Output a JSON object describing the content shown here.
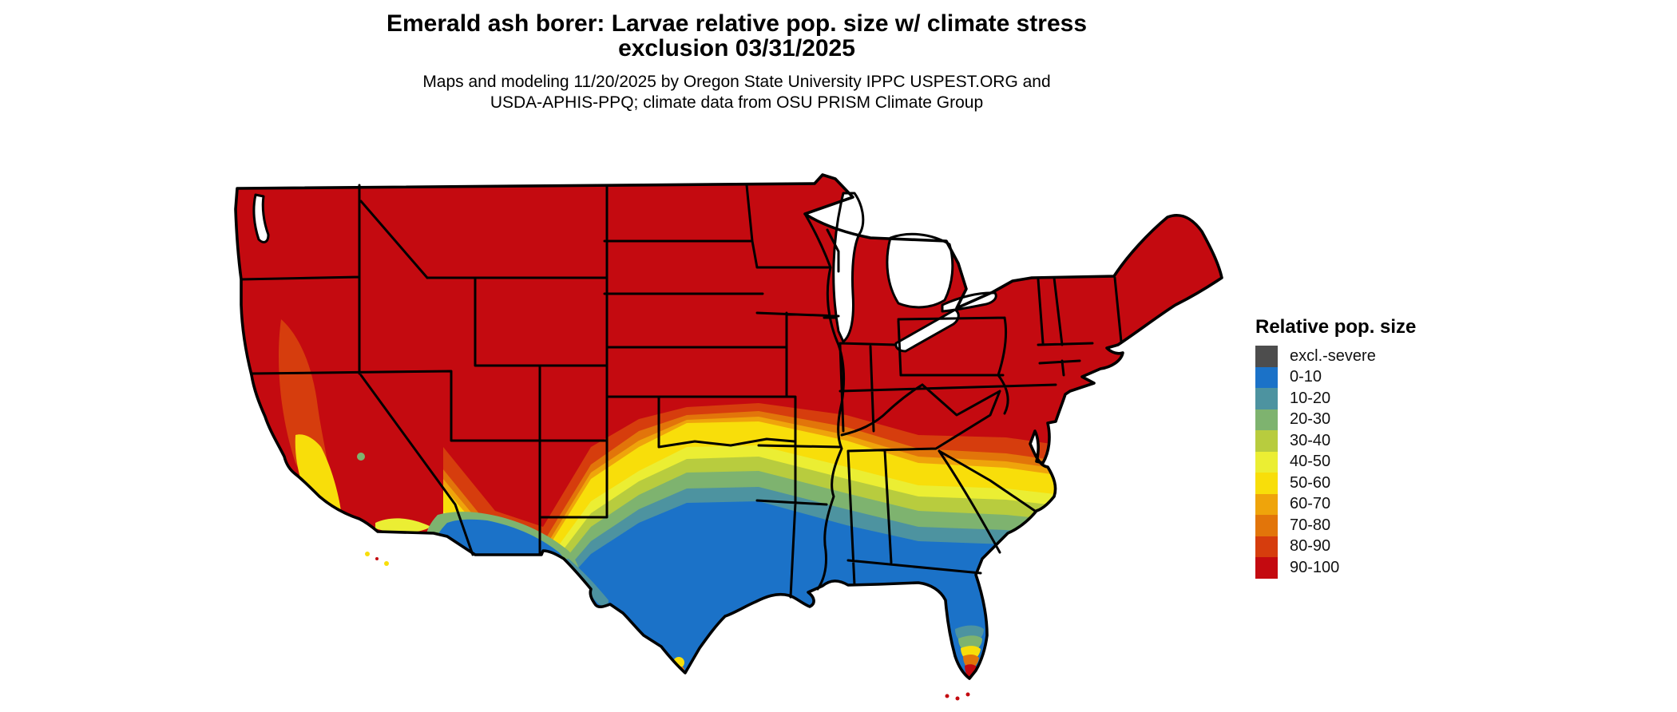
{
  "title": {
    "line1": "Emerald ash borer: Larvae relative pop. size w/ climate stress",
    "line2": "exclusion 03/31/2025"
  },
  "subtitle": {
    "line1": "Maps and modeling 11/20/2025 by Oregon State University IPPC USPEST.ORG and",
    "line2": "USDA-APHIS-PPQ; climate data from OSU PRISM Climate Group"
  },
  "legend": {
    "title": "Relative pop. size",
    "items": [
      {
        "label": "excl.-severe",
        "color": "#4d4d4d"
      },
      {
        "label": "0-10",
        "color": "#1b72c8"
      },
      {
        "label": "10-20",
        "color": "#4d93a0"
      },
      {
        "label": "20-30",
        "color": "#7eb36f"
      },
      {
        "label": "30-40",
        "color": "#b8cc3e"
      },
      {
        "label": "40-50",
        "color": "#ebee33"
      },
      {
        "label": "50-60",
        "color": "#f8de0a"
      },
      {
        "label": "60-70",
        "color": "#efa40b"
      },
      {
        "label": "70-80",
        "color": "#e2750a"
      },
      {
        "label": "80-90",
        "color": "#d63d0d"
      },
      {
        "label": "90-100",
        "color": "#c40a10"
      }
    ]
  },
  "map": {
    "border_color": "#000000",
    "water_color": "#ffffff",
    "dominant_class": "90-100"
  }
}
